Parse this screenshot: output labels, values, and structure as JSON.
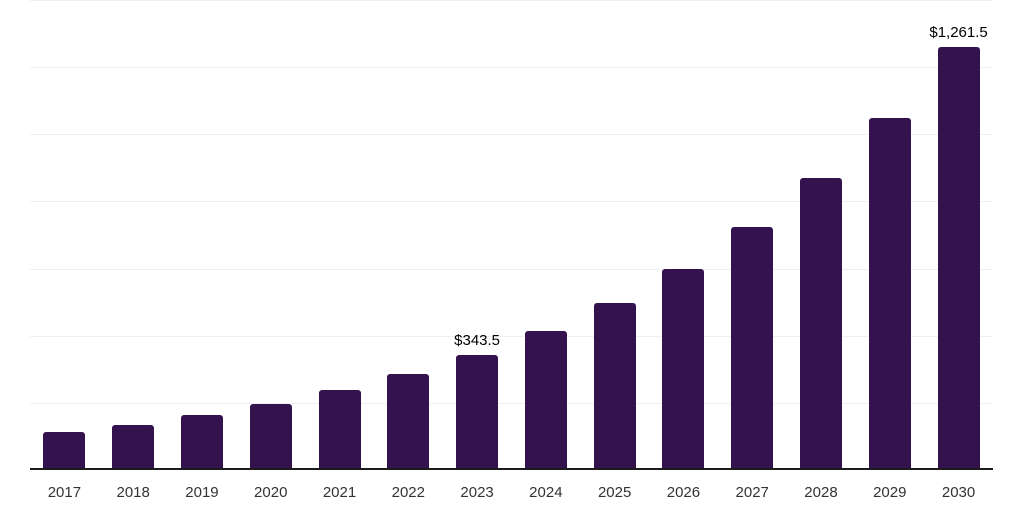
{
  "chart": {
    "background": "#ffffff",
    "bar_color": "#33124E",
    "gridline_color": "#efefef",
    "axis_line_color": "#1a1a1a",
    "value_label_color": "#000000",
    "tick_label_color": "#333333"
  },
  "chart_data": {
    "type": "bar",
    "title": "",
    "xlabel": "",
    "ylabel": "",
    "categories": [
      "2017",
      "2018",
      "2019",
      "2020",
      "2021",
      "2022",
      "2023",
      "2024",
      "2025",
      "2026",
      "2027",
      "2028",
      "2029",
      "2030"
    ],
    "values": [
      112,
      135,
      163,
      196,
      237,
      285,
      343.5,
      413.7,
      498.2,
      600,
      722.6,
      870.2,
      1048,
      1261.5
    ],
    "data_labels": [
      {
        "category": "2023",
        "text": "$343.5"
      },
      {
        "category": "2030",
        "text": "$1,261.5"
      }
    ],
    "ylim": [
      0,
      1400
    ],
    "grid_step": 200,
    "grid": true,
    "y_axis_labels_visible": false,
    "legend": "none"
  }
}
